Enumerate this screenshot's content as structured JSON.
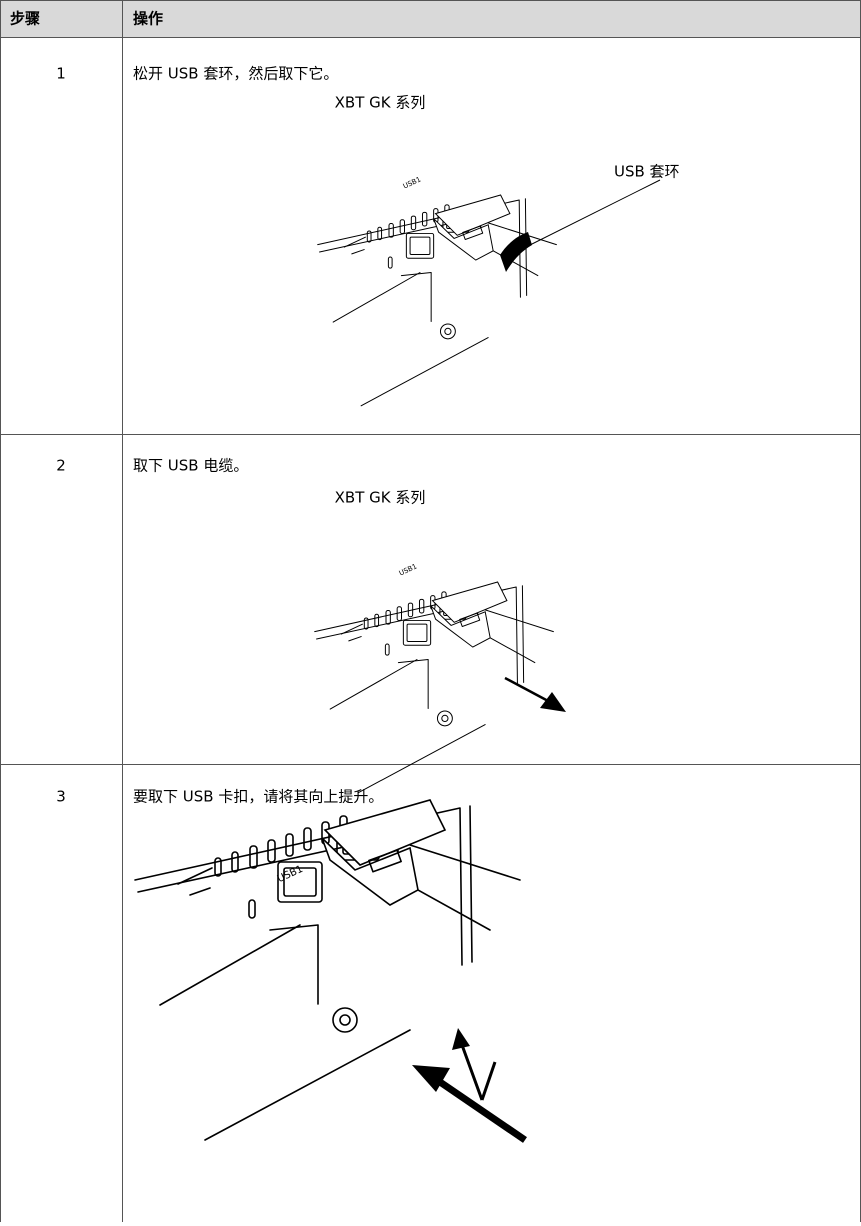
{
  "table": {
    "header": [
      "步骤",
      "操作"
    ],
    "rows": [
      {
        "step": "1",
        "text": "松开 USB 套环，然后取下它。",
        "figure_title": "XBT GK 系列",
        "device_label": "USB1",
        "callout": "USB 套环"
      },
      {
        "step": "2",
        "text": "取下 USB 电缆。",
        "figure_title": "XBT GK 系列",
        "device_label": "USB1"
      },
      {
        "step": "3",
        "text": "要取下 USB 卡扣，请将其向上提升。",
        "device_label": "USB1"
      }
    ]
  }
}
